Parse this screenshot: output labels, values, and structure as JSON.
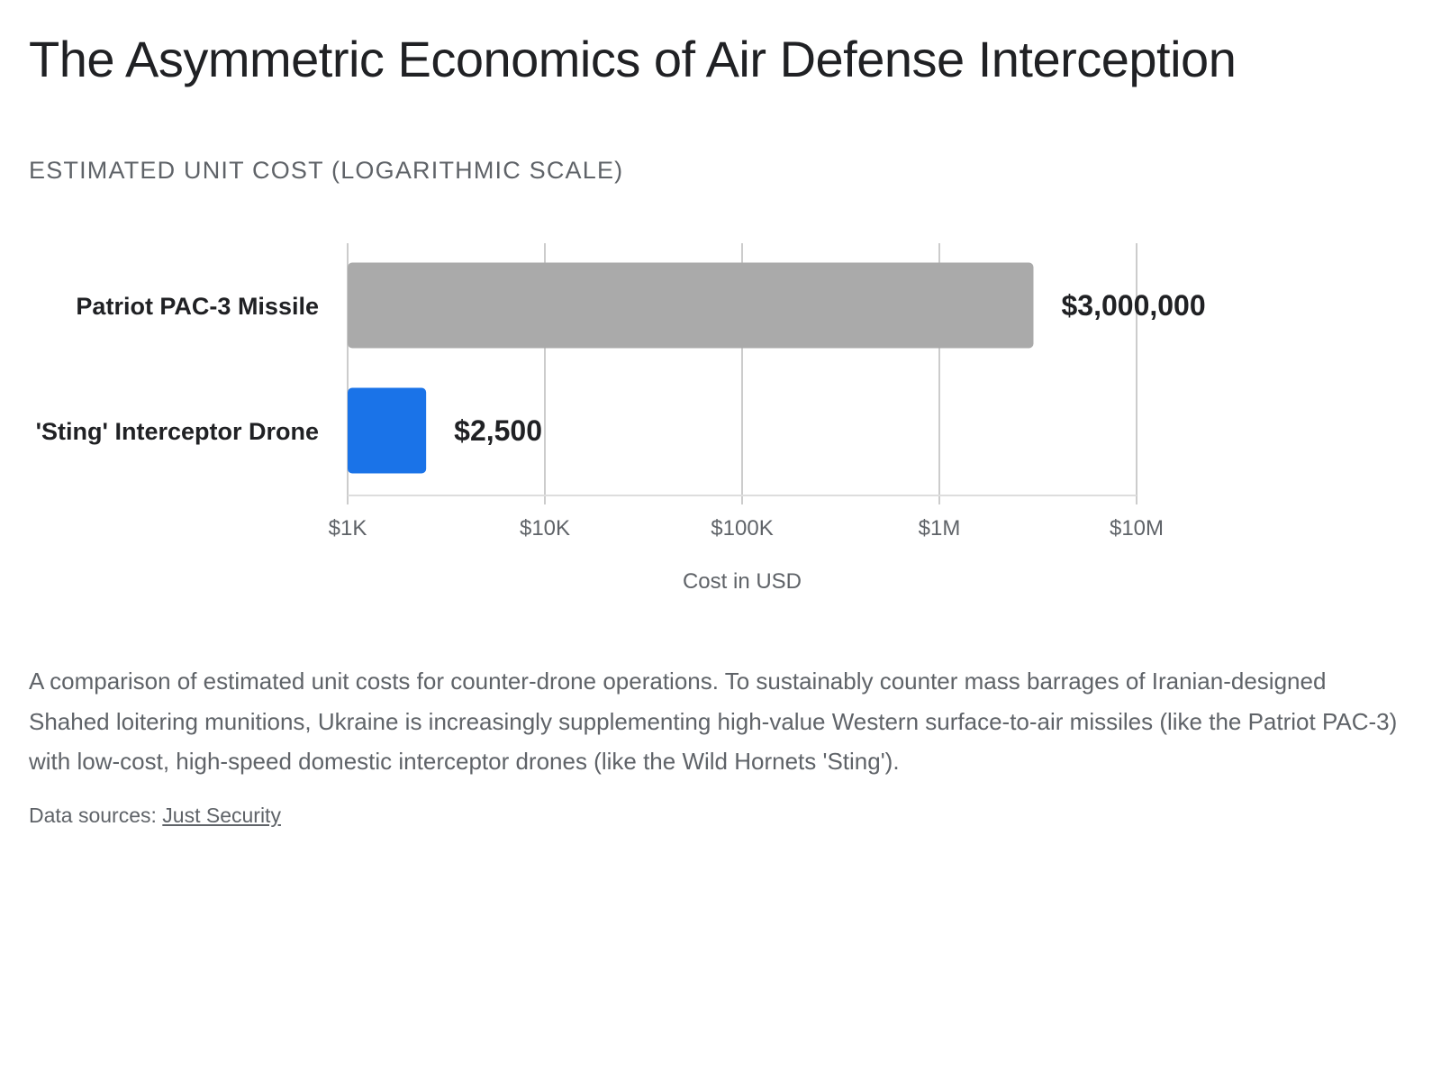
{
  "title": "The Asymmetric Economics of Air Defense Interception",
  "subtitle": "ESTIMATED UNIT COST (LOGARITHMIC SCALE)",
  "description": "A comparison of estimated unit costs for counter-drone operations. To sustainably counter mass barrages of Iranian-designed Shahed loitering munitions, Ukraine is increasingly supplementing high-value Western surface-to-air missiles (like the Patriot PAC-3) with low-cost, high-speed domestic interceptor drones (like the Wild Hornets 'Sting').",
  "sources": {
    "prefix": "Data sources:",
    "link_label": "Just Security"
  },
  "chart_data": {
    "type": "bar",
    "orientation": "horizontal",
    "scale": "log10",
    "categories": [
      "Patriot PAC-3 Missile",
      "'Sting' Interceptor Drone"
    ],
    "values": [
      3000000,
      2500
    ],
    "value_labels": [
      "$3,000,000",
      "$2,500"
    ],
    "bar_colors": [
      "#aaaaaa",
      "#1a73e8"
    ],
    "xlim": [
      1000,
      10000000
    ],
    "x_ticks": [
      1000,
      10000,
      100000,
      1000000,
      10000000
    ],
    "x_tick_labels": [
      "$1K",
      "$10K",
      "$100K",
      "$1M",
      "$10M"
    ],
    "xlabel": "Cost in USD",
    "title": "ESTIMATED UNIT COST (LOGARITHMIC SCALE)",
    "grid": true
  }
}
